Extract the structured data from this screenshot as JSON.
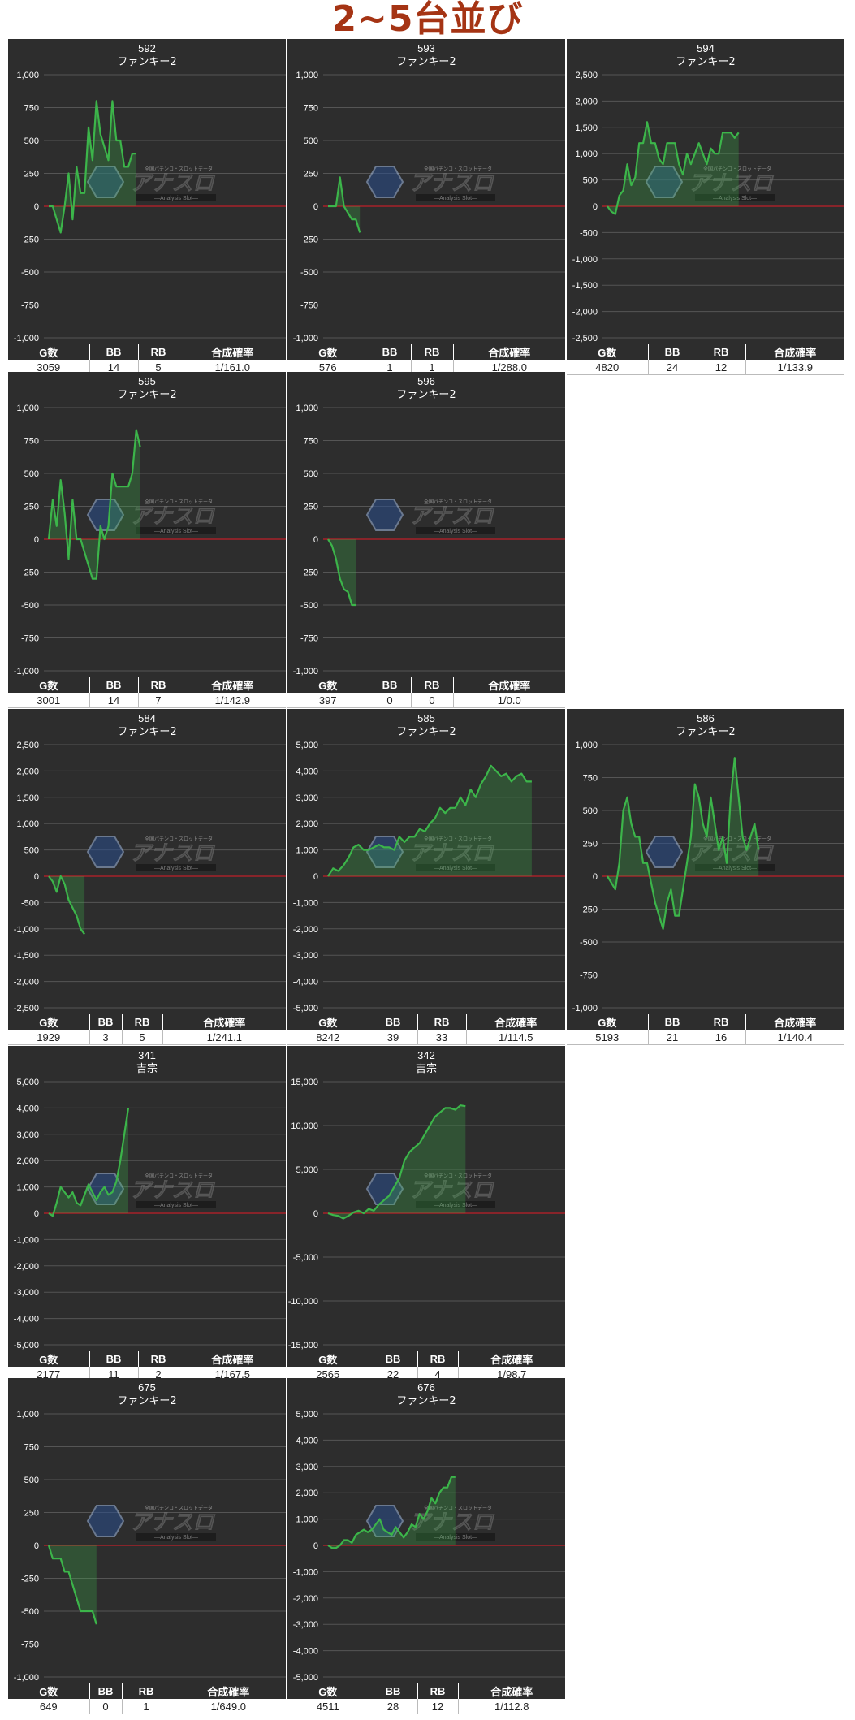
{
  "page_title": "2~5台並び",
  "colors": {
    "background": "#2d2d2d",
    "line": "#3cb54a",
    "fill": "#3cb54a",
    "zero_line": "#c0202a",
    "title": "#a53414"
  },
  "watermark": {
    "logo_text": "アナスロ",
    "tagline": "全国パチンコ・スロットデータ",
    "sub": "—Analysis Slot—"
  },
  "stat_headers": {
    "games": "G数",
    "bb": "BB",
    "rb": "RB",
    "rate": "合成確率"
  },
  "chart_data": [
    {
      "type": "area",
      "machine_no": "592",
      "model": "ファンキー2",
      "ylim": [
        -1000,
        1000
      ],
      "yticks": [
        "1,000",
        "750",
        "500",
        "250",
        "0",
        "-250",
        "-500",
        "-750",
        "-1,000"
      ],
      "values": [
        0,
        0,
        -100,
        -200,
        0,
        250,
        -100,
        300,
        100,
        100,
        600,
        350,
        800,
        550,
        450,
        350,
        800,
        500,
        500,
        300,
        300,
        400,
        400
      ],
      "stats": {
        "games": "3059",
        "bb": "14",
        "rb": "5",
        "rate": "1/161.0"
      }
    },
    {
      "type": "area",
      "machine_no": "593",
      "model": "ファンキー2",
      "ylim": [
        -1000,
        1000
      ],
      "yticks": [
        "1,000",
        "750",
        "500",
        "250",
        "0",
        "-250",
        "-500",
        "-750",
        "-1,000"
      ],
      "values": [
        0,
        0,
        0,
        220,
        0,
        -50,
        -100,
        -100,
        -200
      ],
      "stats": {
        "games": "576",
        "bb": "1",
        "rb": "1",
        "rate": "1/288.0"
      }
    },
    {
      "type": "area",
      "machine_no": "594",
      "model": "ファンキー2",
      "ylim": [
        -2500,
        2500
      ],
      "yticks": [
        "2,500",
        "2,000",
        "1,500",
        "1,000",
        "500",
        "0",
        "-500",
        "-1,000",
        "-1,500",
        "-2,000",
        "-2,500"
      ],
      "values": [
        0,
        -100,
        -150,
        200,
        300,
        800,
        400,
        550,
        1200,
        1200,
        1600,
        1200,
        1200,
        900,
        800,
        1200,
        1200,
        1200,
        800,
        600,
        1000,
        800,
        1000,
        1200,
        1000,
        800,
        1100,
        1000,
        1000,
        1400,
        1400,
        1400,
        1300,
        1400
      ],
      "stats": {
        "games": "4820",
        "bb": "24",
        "rb": "12",
        "rate": "1/133.9"
      }
    },
    {
      "type": "area",
      "machine_no": "595",
      "model": "ファンキー2",
      "ylim": [
        -1000,
        1000
      ],
      "yticks": [
        "1,000",
        "750",
        "500",
        "250",
        "0",
        "-250",
        "-500",
        "-750",
        "-1,000"
      ],
      "values": [
        0,
        300,
        100,
        450,
        200,
        -150,
        300,
        0,
        0,
        -100,
        -200,
        -300,
        -300,
        100,
        0,
        100,
        500,
        400,
        400,
        400,
        400,
        500,
        830,
        700
      ],
      "stats": {
        "games": "3001",
        "bb": "14",
        "rb": "7",
        "rate": "1/142.9"
      }
    },
    {
      "type": "area",
      "machine_no": "596",
      "model": "ファンキー2",
      "ylim": [
        -1000,
        1000
      ],
      "yticks": [
        "1,000",
        "750",
        "500",
        "250",
        "0",
        "-250",
        "-500",
        "-750",
        "-1,000"
      ],
      "values": [
        0,
        -50,
        -150,
        -300,
        -380,
        -400,
        -500,
        -500
      ],
      "stats": {
        "games": "397",
        "bb": "0",
        "rb": "0",
        "rate": "1/0.0"
      }
    },
    {
      "type": "area",
      "machine_no": "584",
      "model": "ファンキー2",
      "ylim": [
        -2500,
        2500
      ],
      "yticks": [
        "2,500",
        "2,000",
        "1,500",
        "1,000",
        "500",
        "0",
        "-500",
        "-1,000",
        "-1,500",
        "-2,000",
        "-2,500"
      ],
      "values": [
        0,
        -100,
        -300,
        0,
        -150,
        -450,
        -600,
        -750,
        -1000,
        -1100
      ],
      "stats": {
        "games": "1929",
        "bb": "3",
        "rb": "5",
        "rate": "1/241.1"
      }
    },
    {
      "type": "area",
      "machine_no": "585",
      "model": "ファンキー2",
      "ylim": [
        -5000,
        5000
      ],
      "yticks": [
        "5,000",
        "4,000",
        "3,000",
        "2,000",
        "1,000",
        "0",
        "-1,000",
        "-2,000",
        "-3,000",
        "-4,000",
        "-5,000"
      ],
      "values": [
        0,
        300,
        200,
        400,
        700,
        1100,
        1200,
        1000,
        1000,
        1100,
        1200,
        1100,
        1100,
        1000,
        1500,
        1300,
        1500,
        1500,
        1800,
        1700,
        2000,
        2200,
        2600,
        2400,
        2600,
        2600,
        3000,
        2700,
        3300,
        3000,
        3500,
        3800,
        4200,
        4000,
        3800,
        3900,
        3600,
        3800,
        3900,
        3600,
        3600
      ],
      "stats": {
        "games": "8242",
        "bb": "39",
        "rb": "33",
        "rate": "1/114.5"
      }
    },
    {
      "type": "area",
      "machine_no": "586",
      "model": "ファンキー2",
      "ylim": [
        -1000,
        1000
      ],
      "yticks": [
        "1,000",
        "750",
        "500",
        "250",
        "0",
        "-250",
        "-500",
        "-750",
        "-1,000"
      ],
      "values": [
        0,
        -50,
        -100,
        100,
        500,
        600,
        400,
        300,
        300,
        100,
        100,
        -50,
        -200,
        -300,
        -400,
        -200,
        -100,
        -300,
        -300,
        -100,
        100,
        300,
        700,
        600,
        400,
        300,
        600,
        400,
        200,
        300,
        100,
        600,
        900,
        600,
        300,
        200,
        300,
        400,
        200
      ],
      "stats": {
        "games": "5193",
        "bb": "21",
        "rb": "16",
        "rate": "1/140.4"
      }
    },
    {
      "type": "area",
      "machine_no": "341",
      "model": "吉宗",
      "ylim": [
        -5000,
        5000
      ],
      "yticks": [
        "5,000",
        "4,000",
        "3,000",
        "2,000",
        "1,000",
        "0",
        "-1,000",
        "-2,000",
        "-3,000",
        "-4,000",
        "-5,000"
      ],
      "values": [
        0,
        -100,
        400,
        1000,
        800,
        600,
        800,
        400,
        300,
        700,
        1100,
        800,
        500,
        800,
        1000,
        700,
        800,
        1200,
        2000,
        3000,
        4000
      ],
      "stats": {
        "games": "2177",
        "bb": "11",
        "rb": "2",
        "rate": "1/167.5"
      }
    },
    {
      "type": "area",
      "machine_no": "342",
      "model": "吉宗",
      "ylim": [
        -15000,
        15000
      ],
      "yticks": [
        "15,000",
        "10,000",
        "5,000",
        "0",
        "-5,000",
        "-10,000",
        "-15,000"
      ],
      "values": [
        0,
        -200,
        -300,
        -600,
        -300,
        100,
        300,
        0,
        500,
        300,
        1000,
        1500,
        2000,
        3000,
        4000,
        6000,
        7000,
        7500,
        8000,
        9000,
        10000,
        11000,
        11500,
        12000,
        12000,
        11800,
        12300,
        12200
      ],
      "stats": {
        "games": "2565",
        "bb": "22",
        "rb": "4",
        "rate": "1/98.7"
      }
    },
    {
      "type": "area",
      "machine_no": "675",
      "model": "ファンキー2",
      "ylim": [
        -1000,
        1000
      ],
      "yticks": [
        "1,000",
        "750",
        "500",
        "250",
        "0",
        "-250",
        "-500",
        "-750",
        "-1,000"
      ],
      "values": [
        0,
        -100,
        -100,
        -100,
        -200,
        -200,
        -300,
        -400,
        -500,
        -500,
        -500,
        -500,
        -600
      ],
      "stats": {
        "games": "649",
        "bb": "0",
        "rb": "1",
        "rate": "1/649.0"
      }
    },
    {
      "type": "area",
      "machine_no": "676",
      "model": "ファンキー2",
      "ylim": [
        -5000,
        5000
      ],
      "yticks": [
        "5,000",
        "4,000",
        "3,000",
        "2,000",
        "1,000",
        "0",
        "-1,000",
        "-2,000",
        "-3,000",
        "-4,000",
        "-5,000"
      ],
      "values": [
        0,
        -100,
        -100,
        0,
        200,
        200,
        100,
        400,
        500,
        600,
        500,
        600,
        800,
        1000,
        600,
        500,
        400,
        700,
        500,
        300,
        500,
        800,
        700,
        1200,
        1000,
        1300,
        1800,
        1600,
        2000,
        2200,
        2200,
        2600,
        2600
      ],
      "stats": {
        "games": "4511",
        "bb": "28",
        "rb": "12",
        "rate": "1/112.8"
      }
    }
  ]
}
